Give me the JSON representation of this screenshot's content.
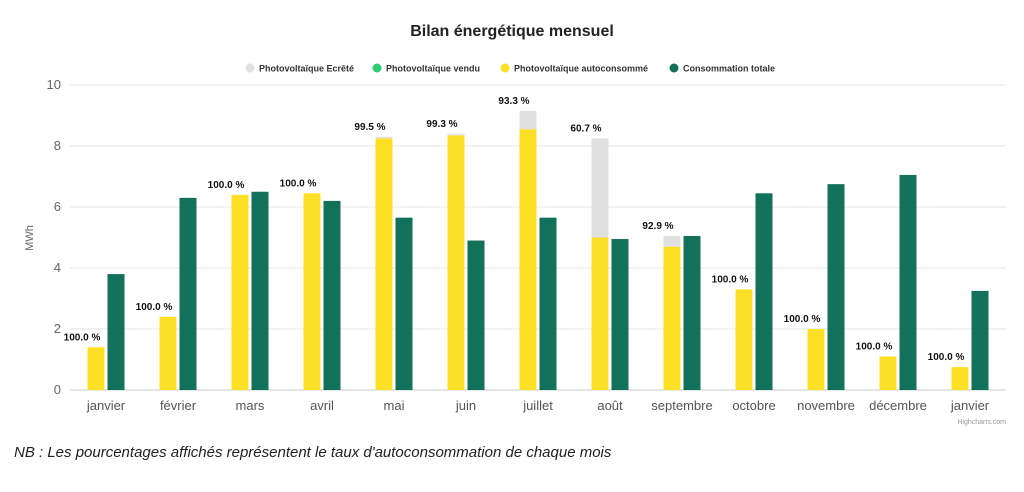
{
  "chart_data": {
    "type": "bar",
    "title": "Bilan énergétique mensuel",
    "ylabel": "MWh",
    "xlabel": "",
    "ylim": [
      0,
      10
    ],
    "yticks": [
      0,
      2,
      4,
      6,
      8,
      10
    ],
    "grid": true,
    "legend_position": "top-center",
    "categories": [
      "janvier",
      "février",
      "mars",
      "avril",
      "mai",
      "juin",
      "juillet",
      "août",
      "septembre",
      "octobre",
      "novembre",
      "décembre",
      "janvier"
    ],
    "series": [
      {
        "name": "Photovoltaïque Ecrêté",
        "color": "#e0e0e0",
        "stack": "pv",
        "values": [
          0,
          0,
          0,
          0,
          0.05,
          0.05,
          0.6,
          3.25,
          0.35,
          0,
          0,
          0,
          0
        ]
      },
      {
        "name": "Photovoltaïque vendu",
        "color": "#2ecc71",
        "stack": "pv",
        "values": [
          0,
          0,
          0,
          0,
          0,
          0,
          0,
          0,
          0,
          0,
          0,
          0,
          0
        ]
      },
      {
        "name": "Photovoltaïque autoconsommé",
        "color": "#fce025",
        "stack": "pv",
        "values": [
          1.4,
          2.4,
          6.4,
          6.45,
          8.25,
          8.35,
          8.55,
          5.0,
          4.7,
          3.3,
          2.0,
          1.1,
          0.75
        ]
      },
      {
        "name": "Consommation totale",
        "color": "#12715b",
        "stack": "conso",
        "values": [
          3.8,
          6.3,
          6.5,
          6.2,
          5.65,
          4.9,
          5.65,
          4.95,
          5.05,
          6.45,
          6.75,
          7.05,
          3.25
        ]
      }
    ],
    "data_labels": [
      "100.0 %",
      "100.0 %",
      "100.0 %",
      "100.0 %",
      "99.5 %",
      "99.3 %",
      "93.3 %",
      "60.7 %",
      "92.9 %",
      "100.0 %",
      "100.0 %",
      "100.0 %",
      "100.0 %"
    ],
    "credits": "Highcharts.com"
  },
  "footnote": "NB : Les pourcentages affichés représentent le taux d'autoconsommation de chaque mois"
}
